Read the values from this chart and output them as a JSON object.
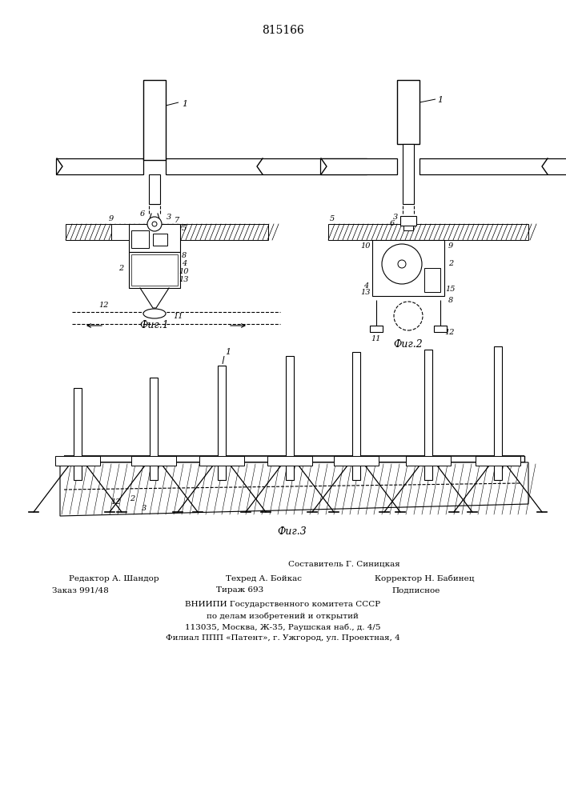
{
  "patent_number": "815166",
  "fig1_caption": "Фиг.1",
  "fig2_caption": "Фиг.2",
  "fig3_caption": "Фиг.3",
  "footer_line0": "Составитель Г. Синицкая",
  "footer_line1_col1": "Редактор А. Шандор",
  "footer_line1_col2": "Техред А. Бойкас",
  "footer_line1_col3": "Корректор Н. Бабинец",
  "footer_line2_col1": "Заказ 991/48",
  "footer_line2_col2": "Тираж 693",
  "footer_line2_col3": "Подписное",
  "footer_vnipi1": "ВНИИПИ Государственного комитета СССР",
  "footer_vnipi2": "по делам изобретений и открытий",
  "footer_vnipi3": "113035, Москва, Ж-35, Раушская наб., д. 4/5",
  "footer_vnipi4": "Филиал ППП «Патент», г. Ужгород, ул. Проектная, 4",
  "bg_color": "#ffffff"
}
